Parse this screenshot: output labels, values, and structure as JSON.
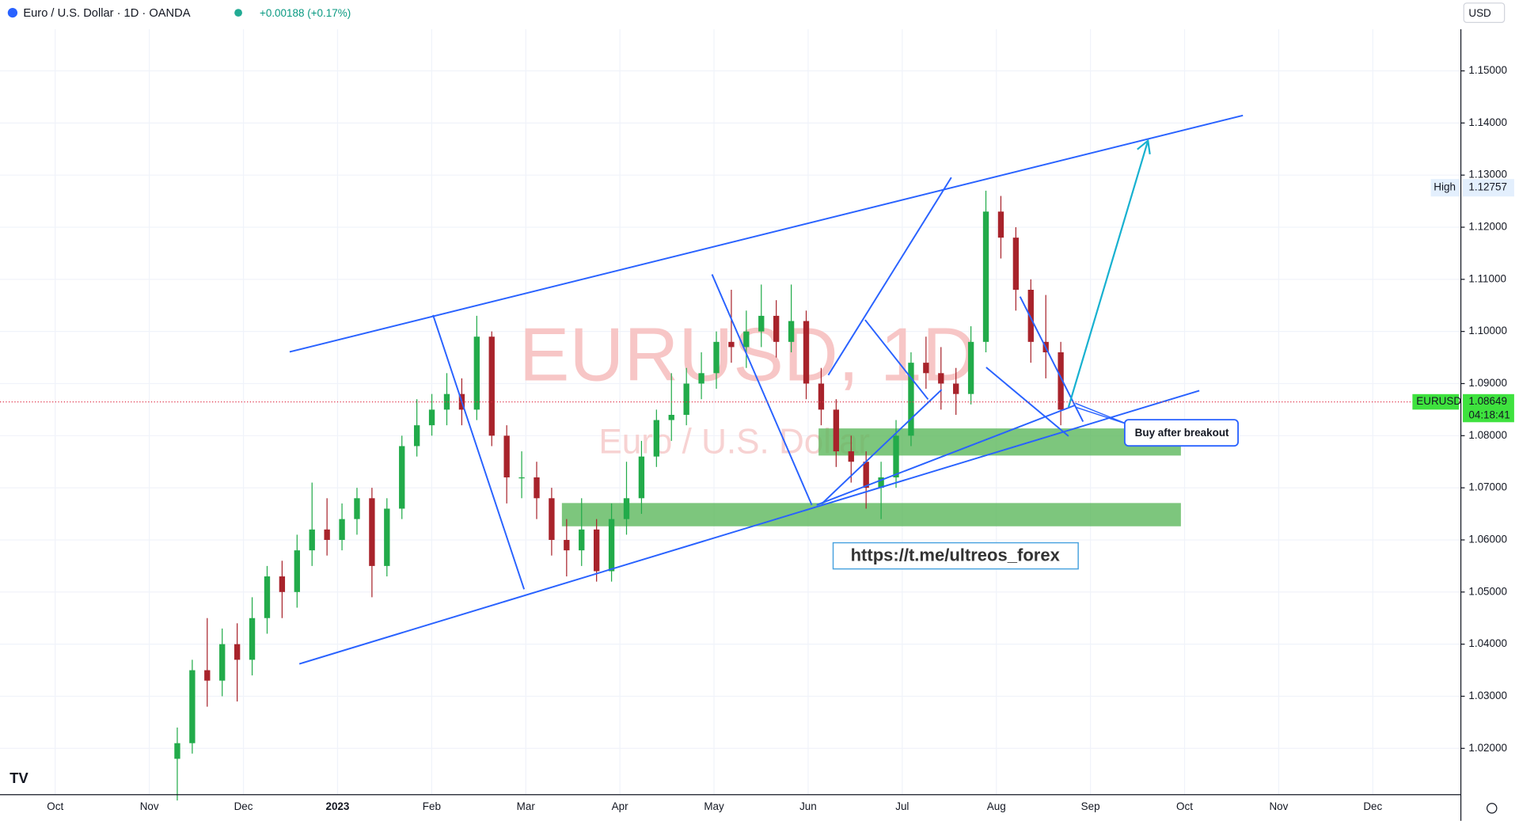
{
  "toolbar": {
    "symbol": "Euro / U.S. Dollar · 1D · OANDA",
    "change": "+0.00188 (+0.17%)",
    "currency": "USD"
  },
  "annotations": {
    "watermark": "EURUSD, 1D",
    "watermark_sub": "Euro / U.S. Dollar",
    "link": "https://t.me/ultreos_forex",
    "callout": "Buy after breakout"
  },
  "chart_data": {
    "type": "candlestick",
    "x_labels": [
      "Oct",
      "Nov",
      "Dec",
      "2023",
      "Feb",
      "Mar",
      "Apr",
      "May",
      "Jun",
      "Jul",
      "Aug",
      "Sep",
      "Oct",
      "Nov",
      "Dec"
    ],
    "ylim": [
      1.01,
      1.16
    ],
    "yticks": [
      {
        "value": 1.02,
        "label": "1.02000"
      },
      {
        "value": 1.03,
        "label": "1.03000"
      },
      {
        "value": 1.04,
        "label": "1.04000"
      },
      {
        "value": 1.05,
        "label": "1.05000"
      },
      {
        "value": 1.06,
        "label": "1.06000"
      },
      {
        "value": 1.07,
        "label": "1.07000"
      },
      {
        "value": 1.08,
        "label": "1.08000"
      },
      {
        "value": 1.09,
        "label": "1.09000"
      },
      {
        "value": 1.1,
        "label": "1.10000"
      },
      {
        "value": 1.11,
        "label": "1.11000"
      },
      {
        "value": 1.12,
        "label": "1.12000"
      },
      {
        "value": 1.13,
        "label": "1.13000"
      },
      {
        "value": 1.14,
        "label": "1.14000"
      },
      {
        "value": 1.15,
        "label": "1.15000"
      }
    ],
    "grid": true,
    "up_color": "#22ab4a",
    "down_color": "#a8232b",
    "high_marker": {
      "label": "High",
      "value": 1.12757
    },
    "last_price": {
      "symbol": "EURUSD",
      "value": 1.08649,
      "countdown": "04:18:41",
      "color": "#3ee23e"
    },
    "candles": {
      "open": [
        1.018,
        1.021,
        1.035,
        1.033,
        1.04,
        1.037,
        1.045,
        1.053,
        1.05,
        1.058,
        1.062,
        1.06,
        1.064,
        1.068,
        1.055,
        1.066,
        1.078,
        1.082,
        1.085,
        1.088,
        1.085,
        1.099,
        1.08,
        1.072,
        1.072,
        1.068,
        1.06,
        1.058,
        1.062,
        1.054,
        1.064,
        1.068,
        1.076,
        1.083,
        1.084,
        1.09,
        1.092,
        1.098,
        1.097,
        1.1,
        1.103,
        1.098,
        1.102,
        1.09,
        1.085,
        1.077,
        1.075,
        1.07,
        1.072,
        1.08,
        1.094,
        1.092,
        1.09,
        1.088,
        1.098,
        1.123,
        1.118,
        1.108,
        1.098,
        1.096
      ],
      "high": [
        1.024,
        1.037,
        1.045,
        1.043,
        1.044,
        1.049,
        1.055,
        1.056,
        1.061,
        1.071,
        1.068,
        1.067,
        1.07,
        1.07,
        1.068,
        1.08,
        1.087,
        1.088,
        1.092,
        1.091,
        1.103,
        1.1,
        1.082,
        1.077,
        1.075,
        1.07,
        1.064,
        1.068,
        1.064,
        1.067,
        1.075,
        1.079,
        1.085,
        1.092,
        1.093,
        1.096,
        1.1,
        1.108,
        1.104,
        1.109,
        1.106,
        1.109,
        1.104,
        1.093,
        1.087,
        1.08,
        1.077,
        1.075,
        1.083,
        1.096,
        1.099,
        1.097,
        1.093,
        1.101,
        1.127,
        1.126,
        1.12,
        1.11,
        1.107,
        1.098
      ],
      "low": [
        1.01,
        1.019,
        1.028,
        1.03,
        1.029,
        1.034,
        1.042,
        1.045,
        1.047,
        1.055,
        1.057,
        1.058,
        1.061,
        1.049,
        1.053,
        1.064,
        1.076,
        1.08,
        1.082,
        1.082,
        1.083,
        1.078,
        1.067,
        1.068,
        1.064,
        1.057,
        1.053,
        1.055,
        1.052,
        1.052,
        1.061,
        1.065,
        1.074,
        1.079,
        1.082,
        1.087,
        1.089,
        1.094,
        1.093,
        1.097,
        1.095,
        1.096,
        1.087,
        1.082,
        1.074,
        1.071,
        1.066,
        1.064,
        1.07,
        1.078,
        1.089,
        1.085,
        1.084,
        1.086,
        1.096,
        1.114,
        1.104,
        1.094,
        1.091,
        1.082
      ],
      "close": [
        1.021,
        1.035,
        1.033,
        1.04,
        1.037,
        1.045,
        1.053,
        1.05,
        1.058,
        1.062,
        1.06,
        1.064,
        1.068,
        1.055,
        1.066,
        1.078,
        1.082,
        1.085,
        1.088,
        1.085,
        1.099,
        1.08,
        1.072,
        1.072,
        1.068,
        1.06,
        1.058,
        1.062,
        1.054,
        1.064,
        1.068,
        1.076,
        1.083,
        1.084,
        1.09,
        1.092,
        1.098,
        1.097,
        1.1,
        1.103,
        1.098,
        1.102,
        1.09,
        1.085,
        1.077,
        1.075,
        1.07,
        1.072,
        1.08,
        1.094,
        1.092,
        1.09,
        1.088,
        1.098,
        1.123,
        1.118,
        1.108,
        1.098,
        1.096,
        1.085
      ]
    }
  }
}
